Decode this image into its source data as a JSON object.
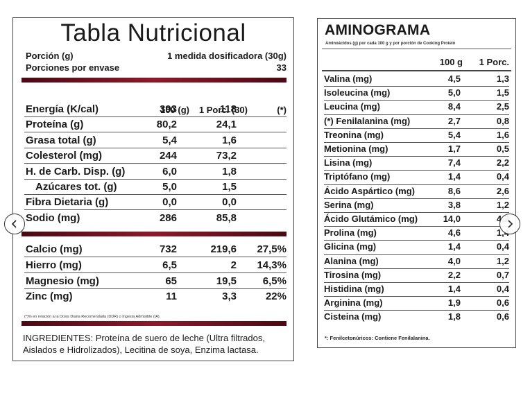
{
  "nutrition": {
    "title": "Tabla Nutricional",
    "portion_label": "Porción (g)",
    "portion_value": "1 medida dosificadora (30g)",
    "servings_label": "Porciones por envase",
    "servings_value": "33",
    "col_100g": "100 (g)",
    "col_portion": "1 Porc. (30)",
    "col_pct": "(*)",
    "rows": [
      {
        "label": "Energía (K/cal)",
        "v100": "393",
        "vporc": "118",
        "pct": ""
      },
      {
        "label": "Proteína (g)",
        "v100": "80,2",
        "vporc": "24,1",
        "pct": ""
      },
      {
        "label": "Grasa total (g)",
        "v100": "5,4",
        "vporc": "1,6",
        "pct": ""
      },
      {
        "label": "Colesterol (mg)",
        "v100": "244",
        "vporc": "73,2",
        "pct": ""
      },
      {
        "label": "H. de Carb. Disp. (g)",
        "v100": "6,0",
        "vporc": "1,8",
        "pct": ""
      },
      {
        "label": "Azúcares tot. (g)",
        "v100": "5,0",
        "vporc": "1,5",
        "pct": ""
      },
      {
        "label": "Fibra Dietaria (g)",
        "v100": "0,0",
        "vporc": "0,0",
        "pct": ""
      },
      {
        "label": "Sodio (mg)",
        "v100": "286",
        "vporc": "85,8",
        "pct": ""
      }
    ],
    "minerals": [
      {
        "label": "Calcio (mg)",
        "v100": "732",
        "vporc": "219,6",
        "pct": "27,5%"
      },
      {
        "label": "Hierro (mg)",
        "v100": "6,5",
        "vporc": "2",
        "pct": "14,3%"
      },
      {
        "label": "Magnesio (mg)",
        "v100": "65",
        "vporc": "19,5",
        "pct": "6,5%"
      },
      {
        "label": "Zinc (mg)",
        "v100": "11",
        "vporc": "3,3",
        "pct": "22%"
      }
    ],
    "footnote": "(*)% en relación a la Dosis Diaria Recomendada (DDR) o Ingesta Admisible (IA).",
    "ingredients_line1": "INGREDIENTES: Proteína de suero de leche (Ultra filtrados,",
    "ingredients_line2": "Aislados e Hidrolizados), Lecitina de soya, Enzima lactasa."
  },
  "aminogram": {
    "title": "AMINOGRAMA",
    "subtitle": "Aminoácidos (g) por cada 100 g y por porción de Cooking Protein",
    "col_100g": "100 g",
    "col_portion": "1 Porc.",
    "rows": [
      {
        "label": "Valina (mg)",
        "v100": "4,5",
        "vporc": "1,3"
      },
      {
        "label": "Isoleucina (mg)",
        "v100": "5,0",
        "vporc": "1,5"
      },
      {
        "label": "Leucina (mg)",
        "v100": "8,4",
        "vporc": "2,5"
      },
      {
        "label": "(*) Fenilalanina (mg)",
        "v100": "2,7",
        "vporc": "0,8"
      },
      {
        "label": "Treonina (mg)",
        "v100": "5,4",
        "vporc": "1,6"
      },
      {
        "label": "Metionina (mg)",
        "v100": "1,7",
        "vporc": "0,5"
      },
      {
        "label": "Lisina (mg)",
        "v100": "7,4",
        "vporc": "2,2"
      },
      {
        "label": "Triptófano (mg)",
        "v100": "1,4",
        "vporc": "0,4"
      },
      {
        "label": "Ácido Aspártico (mg)",
        "v100": "8,6",
        "vporc": "2,6"
      },
      {
        "label": "Serina (mg)",
        "v100": "3,8",
        "vporc": "1,2"
      },
      {
        "label": "Ácido Glutámico (mg)",
        "v100": "14,0",
        "vporc": "4,2"
      },
      {
        "label": "Prolina (mg)",
        "v100": "4,6",
        "vporc": "1,4"
      },
      {
        "label": "Glicina (mg)",
        "v100": "1,4",
        "vporc": "0,4"
      },
      {
        "label": "Alanina (mg)",
        "v100": "4,0",
        "vporc": "1,2"
      },
      {
        "label": "Tirosina (mg)",
        "v100": "2,2",
        "vporc": "0,7"
      },
      {
        "label": "Histidina (mg)",
        "v100": "1,4",
        "vporc": "0,4"
      },
      {
        "label": "Arginina (mg)",
        "v100": "1,9",
        "vporc": "0,6"
      },
      {
        "label": "Cisteina (mg)",
        "v100": "1,8",
        "vporc": "0,6"
      }
    ],
    "note": "*: Fenilcetonúricos: Contiene Fenilalanina."
  },
  "carousel": {
    "prev_icon": "chevron-left-icon",
    "next_icon": "chevron-right-icon",
    "bar_color": "#8b1a2b"
  }
}
